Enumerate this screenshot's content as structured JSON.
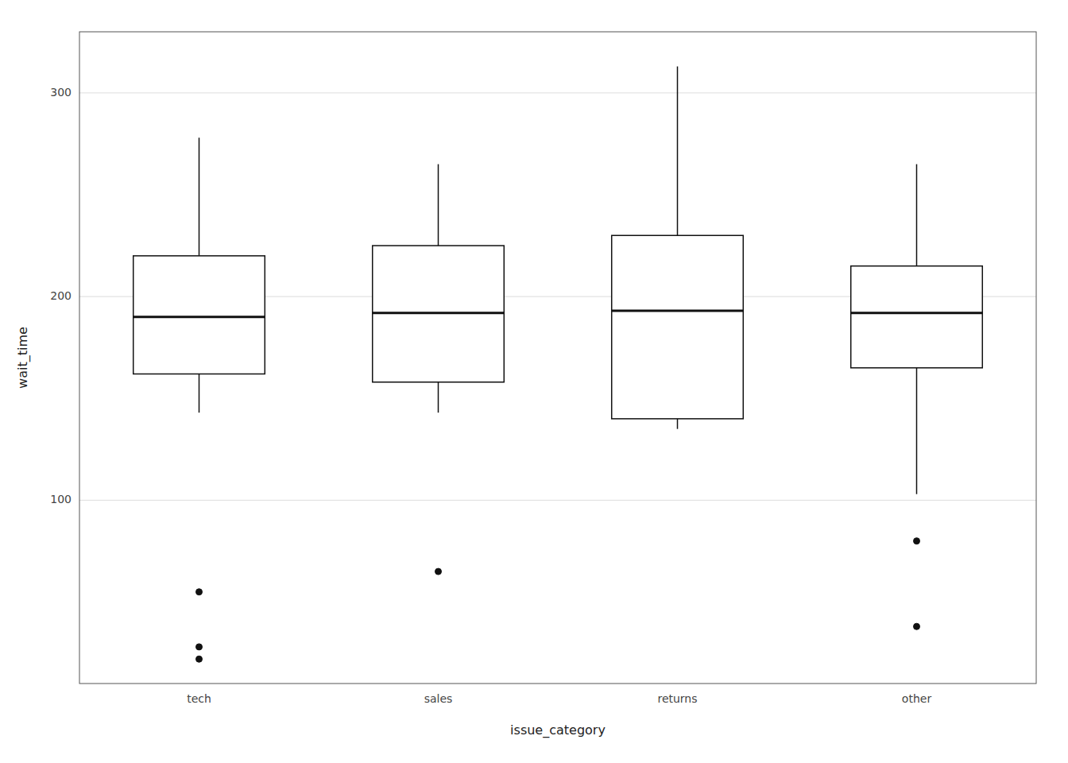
{
  "chart_data": {
    "type": "box",
    "xlabel": "issue_category",
    "ylabel": "wait_time",
    "categories": [
      "tech",
      "sales",
      "returns",
      "other"
    ],
    "boxes": [
      {
        "q1": 162,
        "median": 190,
        "q3": 220,
        "whisker_low": 143,
        "whisker_high": 278,
        "outliers": [
          55,
          28,
          22
        ]
      },
      {
        "q1": 158,
        "median": 192,
        "q3": 225,
        "whisker_low": 143,
        "whisker_high": 265,
        "outliers": [
          65
        ]
      },
      {
        "q1": 140,
        "median": 193,
        "q3": 230,
        "whisker_low": 135,
        "whisker_high": 313,
        "outliers": []
      },
      {
        "q1": 165,
        "median": 192,
        "q3": 215,
        "whisker_low": 103,
        "whisker_high": 265,
        "outliers": [
          80,
          38
        ]
      }
    ],
    "color": "#111111",
    "ylim": [
      10,
      330
    ],
    "yticks": [
      100,
      200,
      300
    ],
    "grid": true
  }
}
